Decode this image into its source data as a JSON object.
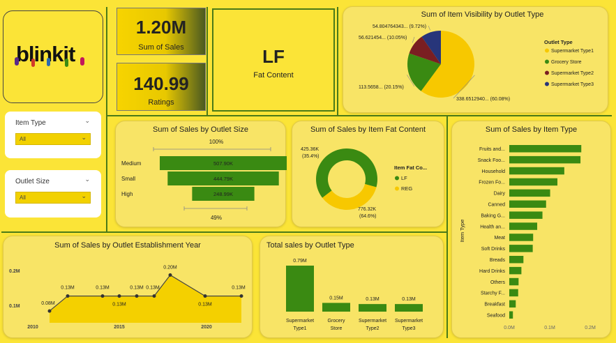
{
  "brand": {
    "logo_text": "blinkit"
  },
  "kpis": {
    "sales_value": "1.20M",
    "sales_label": "Sum of Sales",
    "ratings_value": "140.99",
    "ratings_label": "Ratings",
    "fat_value": "LF",
    "fat_label": "Fat Content"
  },
  "slicers": {
    "item_type": {
      "label": "Item Type",
      "value": "All"
    },
    "outlet_size": {
      "label": "Outlet Size",
      "value": "All"
    }
  },
  "colors": {
    "green": "#3a8a12",
    "yellow": "#f7c800",
    "maroon": "#7a1e22",
    "navy": "#27357a",
    "bg": "#fbe437"
  },
  "chart_data": [
    {
      "id": "visibility_pie",
      "type": "pie",
      "title": "Sum of Item Visibility by Outlet Type",
      "legend_title": "Outlet Type",
      "legend_position": "right",
      "slices": [
        {
          "name": "Supermarket Type1",
          "value": 338.651294,
          "label": "338.6512940... (60.08%)",
          "color": "#f7c800"
        },
        {
          "name": "Grocery Store",
          "value": 113.5658,
          "label": "113.5658... (20.15%)",
          "color": "#3a8a12"
        },
        {
          "name": "Supermarket Type2",
          "value": 56.621454,
          "label": "56.621454... (10.05%)",
          "color": "#7a1e22"
        },
        {
          "name": "Supermarket Type3",
          "value": 54.804764343,
          "label": "54.804764343... (9.72%)",
          "color": "#27357a"
        }
      ]
    },
    {
      "id": "outlet_size_funnel",
      "type": "bar",
      "title": "Sum of Sales by Outlet Size",
      "top_label": "100%",
      "bottom_label": "49%",
      "categories": [
        "Medium",
        "Small",
        "High"
      ],
      "values": [
        507.9,
        444.79,
        248.99
      ],
      "value_labels": [
        "507.90K",
        "444.79K",
        "248.99K"
      ]
    },
    {
      "id": "fat_donut",
      "type": "pie",
      "title": "Sum of Sales by Item Fat Content",
      "legend_title": "Item Fat Co...",
      "legend_position": "right",
      "slices": [
        {
          "name": "LF",
          "value": 776.32,
          "label_value": "776.32K",
          "label_pct": "(64.6%)",
          "color": "#3a8a12"
        },
        {
          "name": "REG",
          "value": 425.36,
          "label_value": "425.36K",
          "label_pct": "(35.4%)",
          "color": "#f7c800"
        }
      ]
    },
    {
      "id": "item_type_bars",
      "type": "bar",
      "title": "Sum of Sales by Item Type",
      "ylabel": "Item Type",
      "categories": [
        "Fruits and...",
        "Snack Foo...",
        "Household",
        "Frozen Fo...",
        "Dairy",
        "Canned",
        "Baking G...",
        "Health an...",
        "Meat",
        "Soft Drinks",
        "Breads",
        "Hard Drinks",
        "Others",
        "Starchy F...",
        "Breakfast",
        "Seafood"
      ],
      "values": [
        0.178,
        0.176,
        0.136,
        0.119,
        0.101,
        0.091,
        0.082,
        0.069,
        0.059,
        0.058,
        0.035,
        0.03,
        0.023,
        0.022,
        0.016,
        0.009
      ],
      "xlim": [
        0,
        0.2
      ],
      "xticks": [
        "0.0M",
        "0.1M",
        "0.2M"
      ]
    },
    {
      "id": "establishment_area",
      "type": "area",
      "title": "Sum of Sales by Outlet Establishment Year",
      "x": [
        2011,
        2012,
        2014,
        2015,
        2016,
        2017,
        2018,
        2020,
        2022
      ],
      "y": [
        0.08,
        0.13,
        0.13,
        0.13,
        0.13,
        0.13,
        0.2,
        0.13,
        0.13
      ],
      "point_labels": [
        "0.08M",
        "0.13M",
        "0.13M",
        "0.13M",
        "0.13M",
        "0.13M",
        "0.20M",
        "0.13M",
        "0.13M"
      ],
      "xticks": [
        "2010",
        "2015",
        "2020"
      ],
      "yticks": [
        "0.1M",
        "0.2M"
      ]
    },
    {
      "id": "outlet_type_bars",
      "type": "bar",
      "title": "Total sales by Outlet Type",
      "categories": [
        "Supermarket Type1",
        "Grocery Store",
        "Supermarket Type2",
        "Supermarket Type3"
      ],
      "cat_lines": [
        [
          "Supermarket",
          "Type1"
        ],
        [
          "Grocery",
          "Store"
        ],
        [
          "Supermarket",
          "Type2"
        ],
        [
          "Supermarket",
          "Type3"
        ]
      ],
      "values": [
        0.79,
        0.15,
        0.13,
        0.13
      ],
      "value_labels": [
        "0.79M",
        "0.15M",
        "0.13M",
        "0.13M"
      ]
    }
  ]
}
